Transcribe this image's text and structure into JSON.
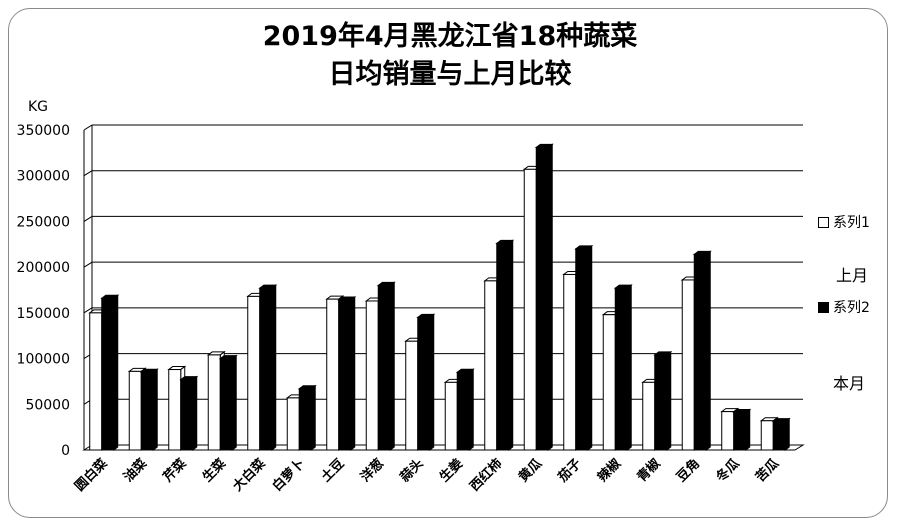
{
  "chart_data": {
    "type": "bar",
    "title": "2019年4月黑龙江省18种蔬菜",
    "subtitle": "日均销量与上月比较",
    "ylabel": "KG",
    "ylim": [
      0,
      350000
    ],
    "yticks": [
      0,
      50000,
      100000,
      150000,
      200000,
      250000,
      300000,
      350000
    ],
    "grid": true,
    "legend_position": "right",
    "categories": [
      "圆白菜",
      "油菜",
      "芹菜",
      "生菜",
      "大白菜",
      "白萝卜",
      "土豆",
      "洋葱",
      "蒜头",
      "生姜",
      "西红柿",
      "黄瓜",
      "茄子",
      "辣椒",
      "青椒",
      "豆角",
      "冬瓜",
      "苦瓜"
    ],
    "series": [
      {
        "name": "系列1",
        "color": "#ffffff",
        "values": [
          150000,
          86000,
          88000,
          104000,
          168000,
          57000,
          165000,
          163000,
          119000,
          74000,
          185000,
          307000,
          192000,
          148000,
          74000,
          186000,
          42000,
          32000
        ]
      },
      {
        "name": "系列2",
        "color": "#000000",
        "values": [
          166000,
          85000,
          77000,
          100000,
          177000,
          67000,
          164000,
          180000,
          145000,
          85000,
          226000,
          331000,
          220000,
          177000,
          104000,
          214000,
          41000,
          31000
        ]
      }
    ],
    "annotations": [
      "上月",
      "本月"
    ]
  }
}
